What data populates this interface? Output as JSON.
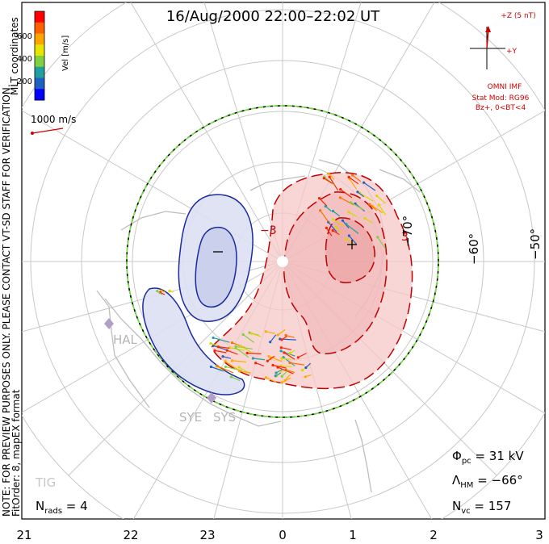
{
  "title": "16/Aug/2000 22:00–22:02 UT",
  "colorbar": {
    "label": "Vel [m/s]",
    "ticks": [
      "600",
      "400",
      "200"
    ],
    "colors": [
      "#ff0000",
      "#ff6000",
      "#ffa500",
      "#e6e600",
      "#80d040",
      "#20a0a0",
      "#2060c0",
      "#0000ff"
    ]
  },
  "side_text": {
    "coords": "MLT coordinates",
    "note": "NOTE: FOR PREVIEW PURPOSES ONLY. PLEASE CONTACT VT-SD STAFF FOR VERIFICATION.",
    "fit": "FitOrder: 8, mapEX format"
  },
  "vector_scale": "1000 m/s",
  "imf": {
    "z_label": "+Z (5 nT)",
    "y_label": "+Y",
    "source": "OMNI IMF",
    "model": "Stat Mod: RG96",
    "cond": "Bz+, 0<BT<4"
  },
  "stations": [
    "HAL",
    "SYE",
    "SYS",
    "TIG"
  ],
  "contour_labels": [
    "−3",
    "3"
  ],
  "lat_labels": [
    "−60°",
    "−50°"
  ],
  "mlt_labels": [
    "21",
    "22",
    "23",
    "0",
    "1",
    "2",
    "3"
  ],
  "stats": {
    "phi_sym": "Φ",
    "phi_sub": "pc",
    "phi_val": " = 31 kV",
    "lam_sym": "Λ",
    "lam_sub": "HM",
    "lam_val": " = −66°",
    "nvc_sym": "N",
    "nvc_sub": "vc",
    "nvc_val": " = 157",
    "nrad_sym": "N",
    "nrad_sub": "rads",
    "nrad_val": " = 4"
  },
  "chart_data": {
    "type": "polar_convection_map",
    "cross_polar_potential_kV": 31,
    "heppner_maynard_boundary_deg": -66,
    "num_vectors": 157,
    "num_radars": 4,
    "velocity_range_m_s": [
      0,
      700
    ],
    "mlt_range": [
      21,
      3
    ]
  }
}
